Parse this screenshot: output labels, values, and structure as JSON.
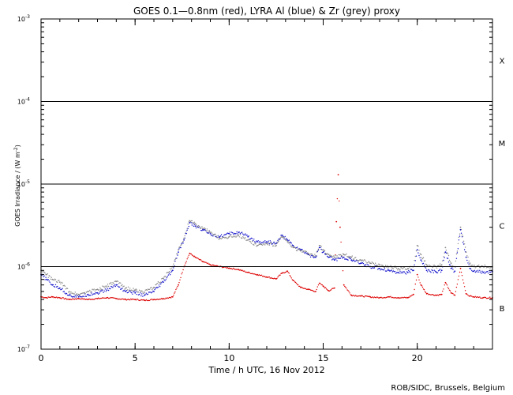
{
  "chart_data": {
    "type": "scatter",
    "title": "GOES 0.1—0.8nm (red), LYRA Al (blue) & Zr (grey) proxy",
    "xlabel": "Time / h UTC, 16 Nov 2012",
    "ylabel_main": "GOES Irradiance / (W m",
    "ylabel_sup": "-2",
    "ylabel_close": ")",
    "credit": "ROB/SIDC, Brussels, Belgium",
    "xlim": [
      0,
      24
    ],
    "ylim": [
      1e-07,
      0.001
    ],
    "yscale": "log",
    "x_ticks": [
      {
        "value": 0,
        "label": "0"
      },
      {
        "value": 5,
        "label": "5"
      },
      {
        "value": 10,
        "label": "10"
      },
      {
        "value": 15,
        "label": "15"
      },
      {
        "value": 20,
        "label": "20"
      }
    ],
    "y_ticks": [
      {
        "value": 1e-07,
        "base": "10",
        "exp": "-7"
      },
      {
        "value": 1e-06,
        "base": "10",
        "exp": "-6"
      },
      {
        "value": 1e-05,
        "base": "10",
        "exp": "-5"
      },
      {
        "value": 0.0001,
        "base": "10",
        "exp": "-4"
      },
      {
        "value": 0.001,
        "base": "10",
        "exp": "-3"
      }
    ],
    "flare_class_lines": [
      1e-06,
      1e-05,
      0.0001
    ],
    "flare_classes": [
      {
        "label": "X",
        "value": 0.000316
      },
      {
        "label": "M",
        "value": 3.16e-05
      },
      {
        "label": "C",
        "value": 3.16e-06
      },
      {
        "label": "B",
        "value": 3.16e-07
      }
    ],
    "series": [
      {
        "name": "GOES 0.1-0.8nm",
        "color": "#dd0000",
        "x": [
          0,
          0.3,
          0.6,
          1,
          1.5,
          2,
          2.5,
          3,
          3.5,
          4,
          4.5,
          5,
          5.5,
          6,
          6.5,
          7,
          7.3,
          7.6,
          7.9,
          8.2,
          8.6,
          9,
          9.5,
          10,
          10.5,
          11,
          11.5,
          12,
          12.5,
          12.8,
          13.1,
          13.4,
          13.8,
          14.2,
          14.6,
          14.8,
          15,
          15.3,
          15.6,
          15.7,
          15.8,
          15.9,
          16.1,
          16.5,
          17,
          17.5,
          18,
          18.5,
          19,
          19.5,
          19.8,
          20.0,
          20.2,
          20.5,
          21,
          21.3,
          21.5,
          21.8,
          22,
          22.3,
          22.6,
          22.8,
          23,
          23.5,
          24
        ],
        "y": [
          4.3e-07,
          4.2e-07,
          4.3e-07,
          4.2e-07,
          4e-07,
          4.1e-07,
          4e-07,
          4.1e-07,
          4.2e-07,
          4.1e-07,
          4e-07,
          4e-07,
          3.9e-07,
          4e-07,
          4.1e-07,
          4.3e-07,
          6e-07,
          1e-06,
          1.45e-06,
          1.3e-06,
          1.15e-06,
          1.05e-06,
          1e-06,
          9.6e-07,
          9.2e-07,
          8.5e-07,
          8e-07,
          7.5e-07,
          7.1e-07,
          8.3e-07,
          8.8e-07,
          6.8e-07,
          5.6e-07,
          5.3e-07,
          5e-07,
          6.3e-07,
          5.8e-07,
          5.1e-07,
          5.5e-07,
          3.5e-06,
          1.3e-05,
          3e-06,
          6e-07,
          4.5e-07,
          4.4e-07,
          4.3e-07,
          4.2e-07,
          4.3e-07,
          4.2e-07,
          4.2e-07,
          4.6e-07,
          8e-07,
          6e-07,
          4.7e-07,
          4.5e-07,
          4.6e-07,
          6.4e-07,
          4.8e-07,
          4.5e-07,
          9.5e-07,
          4.7e-07,
          4.4e-07,
          4.3e-07,
          4.2e-07,
          4.2e-07
        ]
      },
      {
        "name": "LYRA Al proxy",
        "color": "#1010cc",
        "x": [
          0,
          0.3,
          0.6,
          1,
          1.5,
          2,
          2.5,
          3,
          3.5,
          4,
          4.5,
          5,
          5.5,
          6,
          6.5,
          7,
          7.3,
          7.6,
          7.9,
          8.2,
          8.6,
          9,
          9.5,
          10,
          10.5,
          11,
          11.5,
          12,
          12.5,
          12.8,
          13.1,
          13.4,
          13.8,
          14.2,
          14.6,
          14.8,
          15,
          15.3,
          15.6,
          16.1,
          16.5,
          17,
          17.5,
          18,
          18.5,
          19,
          19.5,
          19.8,
          20.0,
          20.2,
          20.5,
          21,
          21.3,
          21.5,
          21.8,
          22,
          22.3,
          22.6,
          22.8,
          23,
          23.5,
          24
        ],
        "y": [
          8e-07,
          7e-07,
          6e-07,
          5.5e-07,
          4.5e-07,
          4.3e-07,
          4.6e-07,
          4.8e-07,
          5.2e-07,
          6e-07,
          5e-07,
          4.8e-07,
          4.5e-07,
          5e-07,
          6.5e-07,
          9e-07,
          1.5e-06,
          2.1e-06,
          3.4e-06,
          3.1e-06,
          2.8e-06,
          2.5e-06,
          2.3e-06,
          2.5e-06,
          2.6e-06,
          2.3e-06,
          2e-06,
          2e-06,
          1.9e-06,
          2.4e-06,
          2.1e-06,
          1.8e-06,
          1.6e-06,
          1.4e-06,
          1.3e-06,
          1.7e-06,
          1.5e-06,
          1.3e-06,
          1.2e-06,
          1.3e-06,
          1.2e-06,
          1.1e-06,
          1e-06,
          9.5e-07,
          9e-07,
          8.5e-07,
          8.5e-07,
          9e-07,
          1.6e-06,
          1.2e-06,
          9e-07,
          8.6e-07,
          9e-07,
          1.5e-06,
          9.5e-07,
          8.8e-07,
          2.8e-06,
          1.3e-06,
          9.5e-07,
          8.8e-07,
          8.5e-07,
          8.7e-07
        ]
      },
      {
        "name": "LYRA Zr proxy",
        "color": "#888888",
        "x": [
          0,
          0.3,
          0.6,
          1,
          1.5,
          2,
          2.5,
          3,
          3.5,
          4,
          4.5,
          5,
          5.5,
          6,
          6.5,
          7,
          7.3,
          7.6,
          7.9,
          8.2,
          8.6,
          9,
          9.5,
          10,
          10.5,
          11,
          11.5,
          12,
          12.5,
          12.8,
          13.1,
          13.4,
          13.8,
          14.2,
          14.6,
          14.8,
          15,
          15.3,
          15.6,
          16.1,
          16.5,
          17,
          17.5,
          18,
          18.5,
          19,
          19.5,
          19.8,
          20.0,
          20.2,
          20.5,
          21,
          21.3,
          21.5,
          21.8,
          22,
          22.3,
          22.6,
          22.8,
          23,
          23.5,
          24
        ],
        "y": [
          9e-07,
          8e-07,
          7e-07,
          6.5e-07,
          5e-07,
          4.6e-07,
          5e-07,
          5.3e-07,
          5.8e-07,
          6.6e-07,
          5.5e-07,
          5.2e-07,
          4.9e-07,
          5.6e-07,
          7.2e-07,
          1e-06,
          1.6e-06,
          2.2e-06,
          3.6e-06,
          3.3e-06,
          2.9e-06,
          2.6e-06,
          2.2e-06,
          2.3e-06,
          2.4e-06,
          2.1e-06,
          1.8e-06,
          1.9e-06,
          1.8e-06,
          2.3e-06,
          2e-06,
          1.7e-06,
          1.55e-06,
          1.45e-06,
          1.35e-06,
          1.8e-06,
          1.6e-06,
          1.4e-06,
          1.3e-06,
          1.4e-06,
          1.3e-06,
          1.2e-06,
          1.1e-06,
          1.05e-06,
          1e-06,
          9.5e-07,
          9.5e-07,
          1e-06,
          1.8e-06,
          1.4e-06,
          1.05e-06,
          1e-06,
          1.05e-06,
          1.7e-06,
          1.1e-06,
          1e-06,
          3e-06,
          1.5e-06,
          1.1e-06,
          1e-06,
          1e-06,
          1e-06
        ]
      }
    ]
  }
}
